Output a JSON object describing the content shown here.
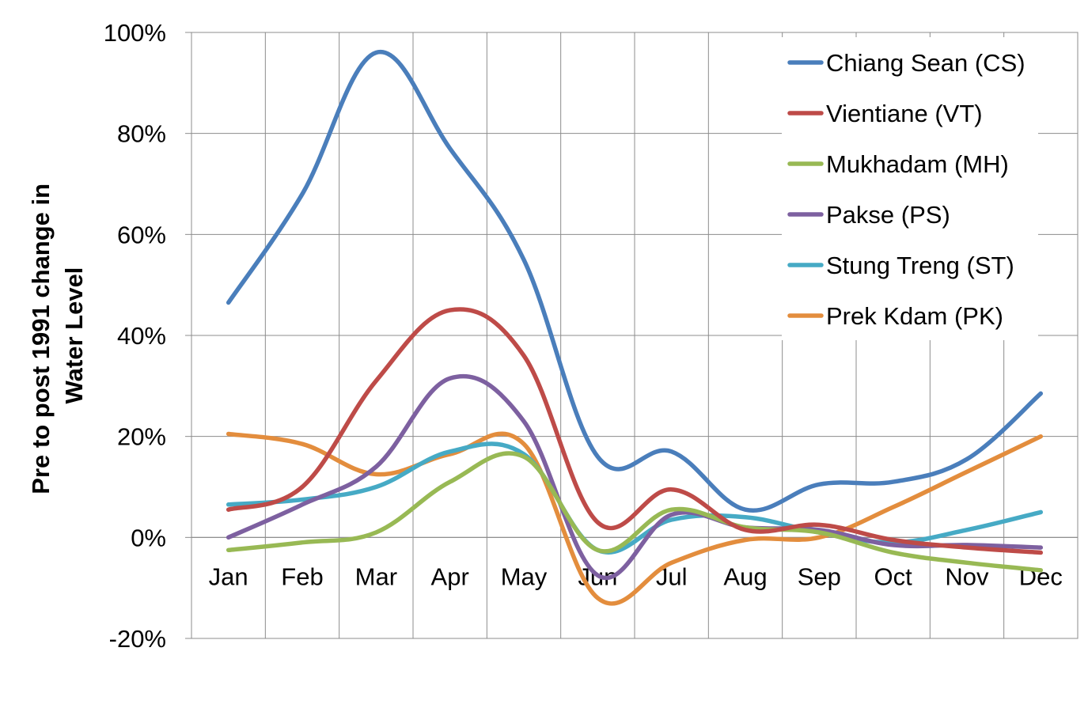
{
  "chart_data": {
    "type": "line",
    "title": "",
    "xlabel": "",
    "ylabel_lines": [
      "Pre to post 1991 change in",
      "Water Level"
    ],
    "ylim": [
      -20,
      100
    ],
    "y_ticks": [
      100,
      80,
      60,
      40,
      20,
      0,
      -20
    ],
    "y_tick_labels": [
      "100%",
      "80%",
      "60%",
      "40%",
      "20%",
      "0%",
      "-20%"
    ],
    "categories": [
      "Jan",
      "Feb",
      "Mar",
      "Apr",
      "May",
      "Jun",
      "Jul",
      "Aug",
      "Sep",
      "Oct",
      "Nov",
      "Dec"
    ],
    "grid": true,
    "legend_position": "top-right",
    "series": [
      {
        "name": "Chiang Sean (CS)",
        "color": "#4a7ebb",
        "values": [
          46.5,
          68,
          96,
          77,
          55,
          16,
          17,
          5.5,
          10.5,
          11,
          15.5,
          28.5
        ]
      },
      {
        "name": "Vientiane (VT)",
        "color": "#be4b48",
        "values": [
          5.5,
          10,
          31,
          45,
          36,
          3,
          9.5,
          1.5,
          2.5,
          -0.5,
          -2,
          -3
        ]
      },
      {
        "name": "Mukhadam (MH)",
        "color": "#98b954",
        "values": [
          -2.5,
          -1,
          1,
          11,
          16,
          -2.5,
          5.5,
          2,
          1,
          -3,
          -5,
          -6.5
        ]
      },
      {
        "name": "Pakse (PS)",
        "color": "#7d60a0",
        "values": [
          0,
          6.5,
          14,
          31.5,
          23,
          -7.5,
          4.5,
          2,
          1.5,
          -1.5,
          -1.5,
          -2
        ]
      },
      {
        "name": "Stung Treng (ST)",
        "color": "#46aac5",
        "values": [
          6.5,
          7.5,
          10,
          17,
          16.5,
          -2.5,
          3.5,
          4,
          1,
          -1,
          1.5,
          5
        ]
      },
      {
        "name": "Prek Kdam (PK)",
        "color": "#e38d3d",
        "values": [
          20.5,
          18.5,
          12.5,
          16.5,
          18.5,
          -12,
          -5,
          -0.5,
          0,
          6,
          13,
          20
        ]
      }
    ]
  }
}
